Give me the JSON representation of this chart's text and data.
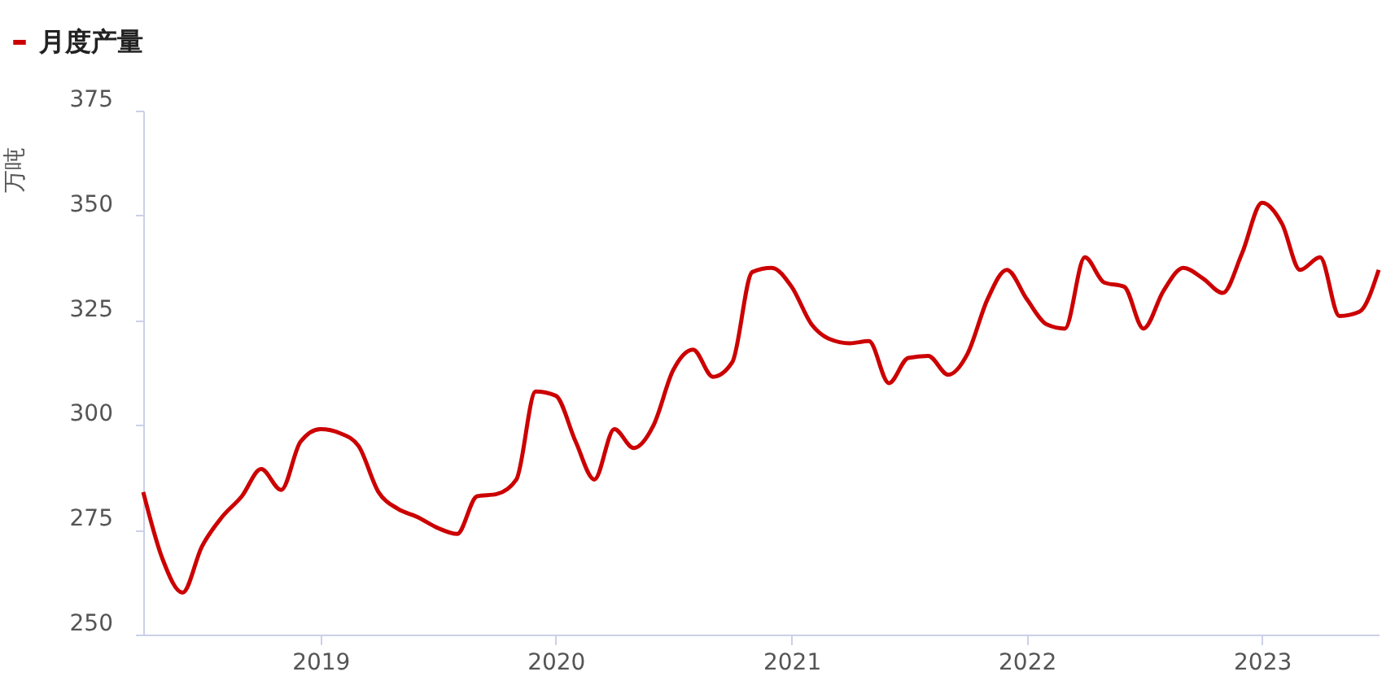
{
  "chart_data": {
    "type": "line",
    "ylabel": "万吨",
    "x": [
      "2018-04",
      "2018-05",
      "2018-06",
      "2018-07",
      "2018-08",
      "2018-09",
      "2018-10",
      "2018-11",
      "2018-12",
      "2019-01",
      "2019-02",
      "2019-03",
      "2019-04",
      "2019-05",
      "2019-06",
      "2019-07",
      "2019-08",
      "2019-09",
      "2019-10",
      "2019-11",
      "2019-12",
      "2020-01",
      "2020-02",
      "2020-03",
      "2020-04",
      "2020-05",
      "2020-06",
      "2020-07",
      "2020-08",
      "2020-09",
      "2020-10",
      "2020-11",
      "2020-12",
      "2021-01",
      "2021-02",
      "2021-03",
      "2021-04",
      "2021-05",
      "2021-06",
      "2021-07",
      "2021-08",
      "2021-09",
      "2021-10",
      "2021-11",
      "2021-12",
      "2022-01",
      "2022-02",
      "2022-03",
      "2022-04",
      "2022-05",
      "2022-06",
      "2022-07",
      "2022-08",
      "2022-09",
      "2022-10",
      "2022-11",
      "2022-12",
      "2023-01",
      "2023-02",
      "2023-03",
      "2023-04",
      "2023-05",
      "2023-06",
      "2023-07"
    ],
    "series": [
      {
        "name": "月度产量",
        "color": "#cc0000",
        "values": [
          284,
          268,
          260,
          271,
          278,
          283,
          289.5,
          284.5,
          296,
          299,
          298,
          295,
          284,
          280,
          278,
          275.5,
          274,
          283,
          283.5,
          287,
          308,
          307,
          296,
          287,
          299,
          294.5,
          300,
          313,
          318,
          311.5,
          315,
          336.5,
          337.5,
          333,
          324,
          320.5,
          319.5,
          320,
          310,
          316,
          316.5,
          312,
          317,
          330,
          337,
          330,
          324,
          323,
          340,
          334,
          333,
          323,
          332,
          337.5,
          335,
          331.5,
          341,
          353,
          348,
          337,
          340,
          326,
          327,
          337
        ]
      }
    ],
    "xlim": [
      "2018-04",
      "2023-07"
    ],
    "xticks": [
      "2019",
      "2020",
      "2021",
      "2022",
      "2023"
    ],
    "ylim": [
      250,
      375
    ],
    "yticks": [
      250,
      275,
      300,
      325,
      350,
      375
    ],
    "grid": false,
    "legend": "top left",
    "marker": "none",
    "line_style": "solid"
  }
}
